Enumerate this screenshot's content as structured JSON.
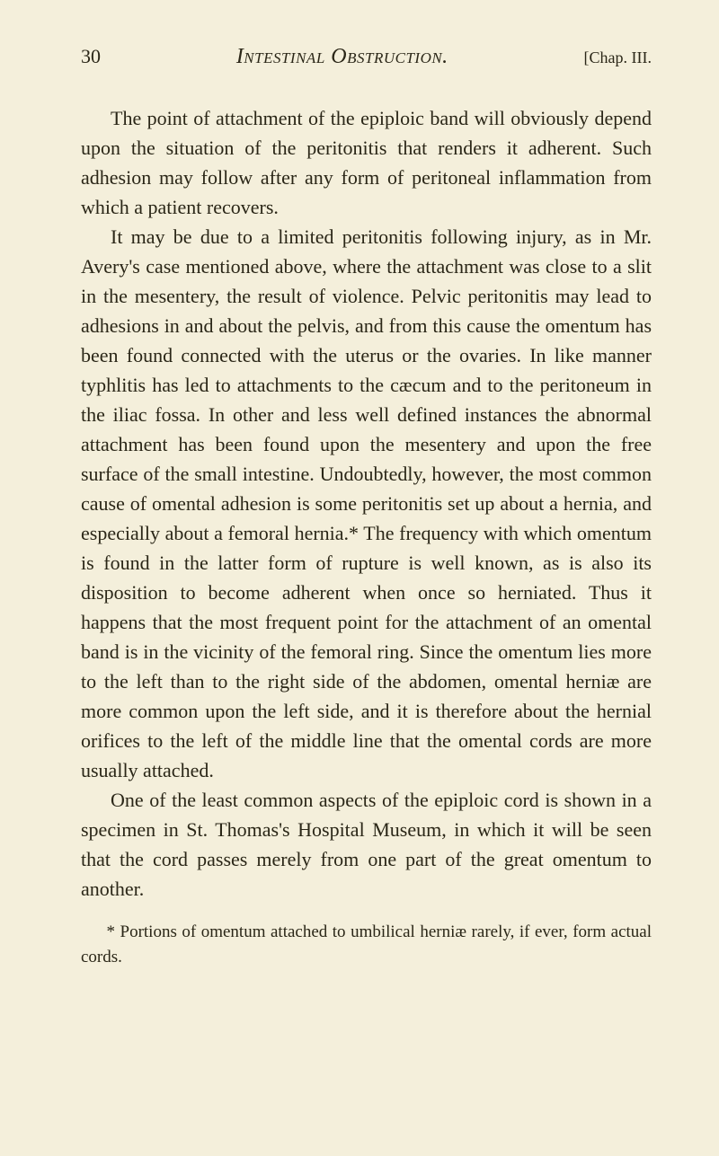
{
  "header": {
    "pageNumber": "30",
    "title": "Intestinal Obstruction.",
    "chapterLabel": "[Chap. III."
  },
  "paragraphs": {
    "p1": "The point of attachment of the epiploic band will obviously depend upon the situation of the peritonitis that renders it adherent. Such adhesion may follow after any form of peritoneal inflammation from which a patient recovers.",
    "p2": "It may be due to a limited peritonitis following injury, as in Mr. Avery's case mentioned above, where the attachment was close to a slit in the mesentery, the result of violence. Pelvic peritonitis may lead to adhesions in and about the pelvis, and from this cause the omentum has been found connected with the uterus or the ovaries. In like manner typhlitis has led to attachments to the cæcum and to the peritoneum in the iliac fossa. In other and less well defined instances the abnormal attachment has been found upon the mesentery and upon the free surface of the small intestine. Undoubtedly, however, the most common cause of omental adhesion is some peritonitis set up about a hernia, and especially about a femoral hernia.* The frequency with which omentum is found in the latter form of rupture is well known, as is also its disposition to become adherent when once so herniated. Thus it happens that the most frequent point for the attachment of an omental band is in the vicinity of the femoral ring. Since the omentum lies more to the left than to the right side of the abdomen, omental herniæ are more common upon the left side, and it is therefore about the hernial orifices to the left of the middle line that the omental cords are more usually attached.",
    "p3": "One of the least common aspects of the epiploic cord is shown in a specimen in St. Thomas's Hospital Museum, in which it will be seen that the cord passes merely from one part of the great omentum to another."
  },
  "footnote": "* Portions of omentum attached to umbilical herniæ rarely, if ever, form actual cords."
}
